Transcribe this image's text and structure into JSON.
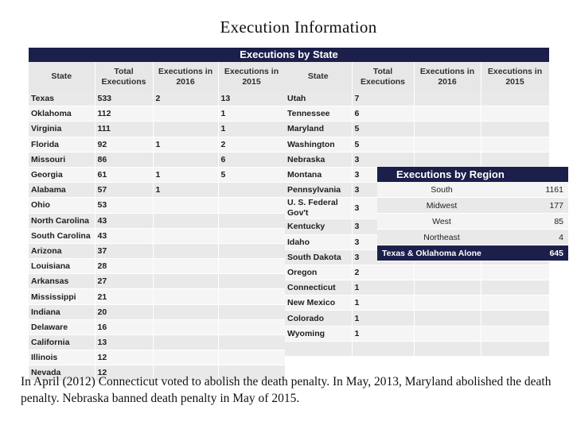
{
  "title": "Execution Information",
  "state_section": {
    "header": "Executions by State",
    "columns": [
      "State",
      "Total Executions",
      "Executions in 2016",
      "Executions in 2015"
    ],
    "left_rows": [
      [
        "Texas",
        "533",
        "2",
        "13"
      ],
      [
        "Oklahoma",
        "112",
        "",
        "1"
      ],
      [
        "Virginia",
        "111",
        "",
        "1"
      ],
      [
        "Florida",
        "92",
        "1",
        "2"
      ],
      [
        "Missouri",
        "86",
        "",
        "6"
      ],
      [
        "Georgia",
        "61",
        "1",
        "5"
      ],
      [
        "Alabama",
        "57",
        "1",
        ""
      ],
      [
        "Ohio",
        "53",
        "",
        ""
      ],
      [
        "North Carolina",
        "43",
        "",
        ""
      ],
      [
        "South Carolina",
        "43",
        "",
        ""
      ],
      [
        "Arizona",
        "37",
        "",
        ""
      ],
      [
        "Louisiana",
        "28",
        "",
        ""
      ],
      [
        "Arkansas",
        "27",
        "",
        ""
      ],
      [
        "Mississippi",
        "21",
        "",
        ""
      ],
      [
        "Indiana",
        "20",
        "",
        ""
      ],
      [
        "Delaware",
        "16",
        "",
        ""
      ],
      [
        "California",
        "13",
        "",
        ""
      ],
      [
        "Illinois",
        "12",
        "",
        ""
      ],
      [
        "Nevada",
        "12",
        "",
        ""
      ]
    ],
    "right_rows": [
      [
        "Utah",
        "7",
        "",
        ""
      ],
      [
        "Tennessee",
        "6",
        "",
        ""
      ],
      [
        "Maryland",
        "5",
        "",
        ""
      ],
      [
        "Washington",
        "5",
        "",
        ""
      ],
      [
        "Nebraska",
        "3",
        "",
        ""
      ],
      [
        "Montana",
        "3",
        "",
        ""
      ],
      [
        "Pennsylvania",
        "3",
        "",
        ""
      ],
      [
        "U. S. Federal Gov't",
        "3",
        "",
        ""
      ],
      [
        "Kentucky",
        "3",
        "",
        ""
      ],
      [
        "Idaho",
        "3",
        "",
        ""
      ],
      [
        "South Dakota",
        "3",
        "",
        ""
      ],
      [
        "Oregon",
        "2",
        "",
        ""
      ],
      [
        "Connecticut",
        "1",
        "",
        ""
      ],
      [
        "New Mexico",
        "1",
        "",
        ""
      ],
      [
        "Colorado",
        "1",
        "",
        ""
      ],
      [
        "Wyoming",
        "1",
        "",
        ""
      ],
      [
        "",
        "",
        "",
        ""
      ]
    ]
  },
  "region_section": {
    "header": "Executions by Region",
    "rows": [
      [
        "South",
        "1161"
      ],
      [
        "Midwest",
        "177"
      ],
      [
        "West",
        "85"
      ],
      [
        "Northeast",
        "4"
      ]
    ],
    "highlight": [
      "Texas & Oklahoma Alone",
      "645"
    ]
  },
  "footnote": "In April (2012) Connecticut voted to abolish the death penalty. In May, 2013, Maryland abolished the death penalty. Nebraska banned death penalty in May of 2015.",
  "colors": {
    "header_navy": "#1c1f4a",
    "row_light": "#f5f5f5",
    "row_dark": "#e9e9e9"
  }
}
